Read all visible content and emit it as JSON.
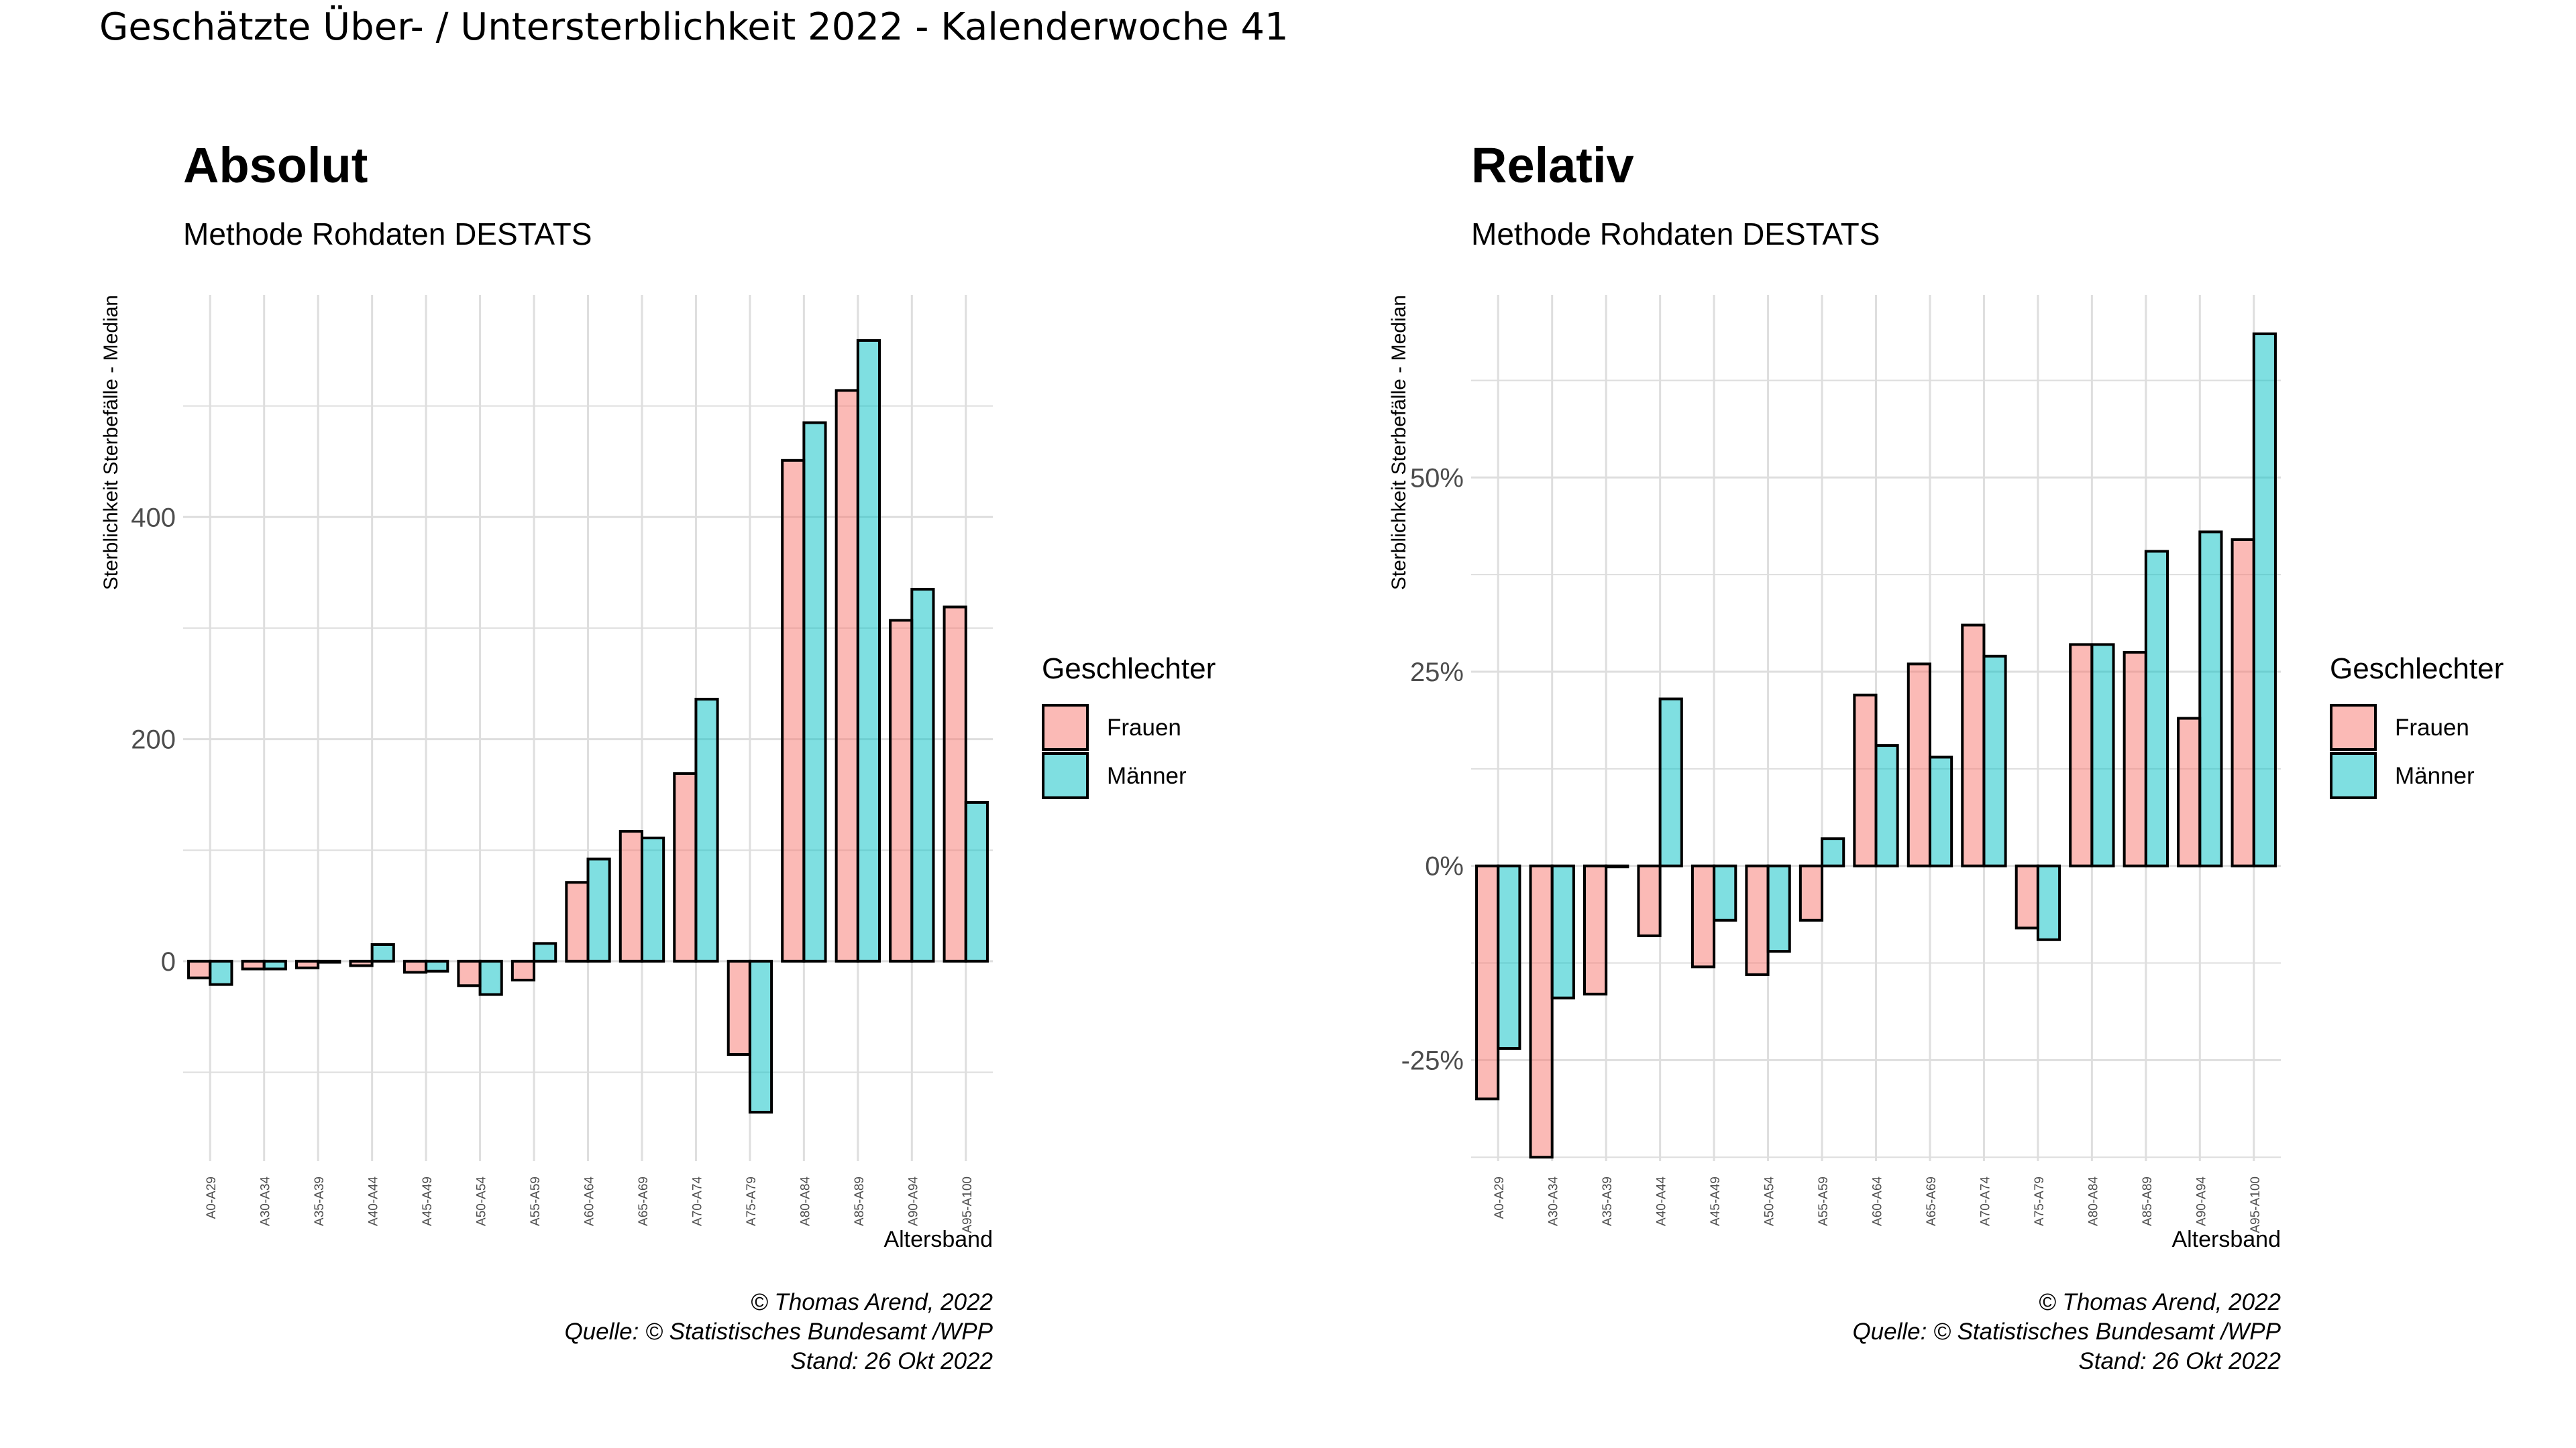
{
  "page": {
    "title": "Geschätzte Über- / Untersterblichkeit 2022 - Kalenderwoche 41"
  },
  "colors": {
    "frauen": "#f8766d",
    "maenner": "#00bfc4",
    "grid": "#dedede"
  },
  "chart_data": [
    {
      "type": "bar",
      "title": "Absolut",
      "subtitle": "Methode Rohdaten DESTATS",
      "xlabel": "Altersband",
      "ylabel": "Sterblichkeit Sterbefälle - Median",
      "legend_title": "Geschlechter",
      "legend_position": "right",
      "grid": true,
      "y_format": "number",
      "ylim": [
        -180,
        600
      ],
      "y_ticks": [
        0,
        200,
        400
      ],
      "y_tick_labels": [
        "0",
        "200",
        "400"
      ],
      "categories": [
        "A0-A29",
        "A30-A34",
        "A35-A39",
        "A40-A44",
        "A45-A49",
        "A50-A54",
        "A55-A59",
        "A60-A64",
        "A65-A69",
        "A70-A74",
        "A75-A79",
        "A80-A84",
        "A85-A89",
        "A90-A94",
        "A95-A100"
      ],
      "series": [
        {
          "name": "Frauen",
          "values": [
            -15,
            -7,
            -6,
            -4,
            -10,
            -22,
            -17,
            71,
            117,
            169,
            -84,
            451,
            514,
            307,
            319
          ]
        },
        {
          "name": "Männer",
          "values": [
            -21,
            -7,
            -1,
            15,
            -9,
            -30,
            16,
            92,
            111,
            236,
            -136,
            485,
            559,
            335,
            143
          ]
        }
      ],
      "caption": [
        "© Thomas Arend, 2022",
        "Quelle: © Statistisches Bundesamt /WPP",
        "Stand: 26 Okt 2022"
      ]
    },
    {
      "type": "bar",
      "title": "Relativ",
      "subtitle": "Methode Rohdaten DESTATS",
      "xlabel": "Altersband",
      "ylabel": "Sterblichkeit Sterbefälle - Median",
      "legend_title": "Geschlechter",
      "legend_position": "right",
      "grid": true,
      "y_format": "percent",
      "ylim": [
        -0.38,
        0.735
      ],
      "y_ticks": [
        -0.25,
        0,
        0.25,
        0.5
      ],
      "y_tick_labels": [
        "-25%",
        "0%",
        "25%",
        "50%"
      ],
      "categories": [
        "A0-A29",
        "A30-A34",
        "A35-A39",
        "A40-A44",
        "A45-A49",
        "A50-A54",
        "A55-A59",
        "A60-A64",
        "A65-A69",
        "A70-A74",
        "A75-A79",
        "A80-A84",
        "A85-A89",
        "A90-A94",
        "A95-A100"
      ],
      "series": [
        {
          "name": "Frauen",
          "values": [
            -0.3,
            -0.375,
            -0.165,
            -0.09,
            -0.13,
            -0.14,
            -0.07,
            0.22,
            0.26,
            0.31,
            -0.08,
            0.285,
            0.275,
            0.19,
            0.42
          ]
        },
        {
          "name": "Männer",
          "values": [
            -0.235,
            -0.17,
            0.0,
            0.215,
            -0.07,
            -0.11,
            0.035,
            0.155,
            0.14,
            0.27,
            -0.095,
            0.285,
            0.405,
            0.43,
            0.685
          ]
        }
      ],
      "caption": [
        "© Thomas Arend, 2022",
        "Quelle: © Statistisches Bundesamt /WPP",
        "Stand: 26 Okt 2022"
      ]
    }
  ]
}
